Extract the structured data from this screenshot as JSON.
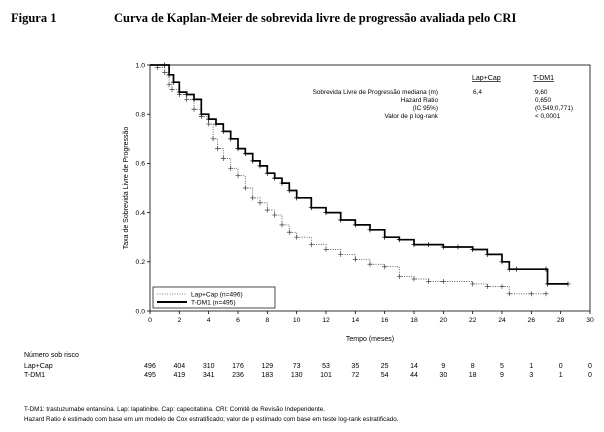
{
  "figure": {
    "label": "Figura 1",
    "title": "Curva de Kaplan-Meier de sobrevida livre de progressão avaliada pelo CRI"
  },
  "chart_data": {
    "type": "line",
    "title": "",
    "xlabel": "Tempo (meses)",
    "ylabel": "Taxa de Sobrevida Livre de Progressão",
    "xlim": [
      0,
      30
    ],
    "ylim": [
      0.0,
      1.0
    ],
    "xticks": [
      "0",
      "2",
      "4",
      "6",
      "8",
      "10",
      "12",
      "14",
      "16",
      "18",
      "20",
      "22",
      "24",
      "26",
      "28",
      "30"
    ],
    "xtick_values": [
      0,
      2,
      4,
      6,
      8,
      10,
      12,
      14,
      16,
      18,
      20,
      22,
      24,
      26,
      28,
      30
    ],
    "yticks": [
      "0.0",
      "0.2",
      "0.4",
      "0.6",
      "0.8",
      "1.0"
    ],
    "ytick_values": [
      0.0,
      0.2,
      0.4,
      0.6,
      0.8,
      1.0
    ],
    "legend_position": "bottom-left",
    "series": [
      {
        "name": "Lap+Cap (n=496)",
        "style": "dotted",
        "points": [
          [
            0,
            1.0
          ],
          [
            0.5,
            0.99
          ],
          [
            1.0,
            0.97
          ],
          [
            1.3,
            0.92
          ],
          [
            1.5,
            0.9
          ],
          [
            2.0,
            0.88
          ],
          [
            2.5,
            0.86
          ],
          [
            3.0,
            0.82
          ],
          [
            3.5,
            0.79
          ],
          [
            4.0,
            0.76
          ],
          [
            4.3,
            0.7
          ],
          [
            4.6,
            0.66
          ],
          [
            5.0,
            0.62
          ],
          [
            5.5,
            0.58
          ],
          [
            6.0,
            0.55
          ],
          [
            6.5,
            0.5
          ],
          [
            7.0,
            0.46
          ],
          [
            7.5,
            0.44
          ],
          [
            8.0,
            0.41
          ],
          [
            8.5,
            0.39
          ],
          [
            9.0,
            0.35
          ],
          [
            9.5,
            0.32
          ],
          [
            10.0,
            0.3
          ],
          [
            11.0,
            0.27
          ],
          [
            12.0,
            0.25
          ],
          [
            13.0,
            0.23
          ],
          [
            14.0,
            0.21
          ],
          [
            15.0,
            0.19
          ],
          [
            16.0,
            0.18
          ],
          [
            17.0,
            0.14
          ],
          [
            18.0,
            0.13
          ],
          [
            19.0,
            0.12
          ],
          [
            20.0,
            0.12
          ],
          [
            22.0,
            0.11
          ],
          [
            23.0,
            0.1
          ],
          [
            24.0,
            0.1
          ],
          [
            24.5,
            0.07
          ],
          [
            26.0,
            0.07
          ],
          [
            27.0,
            0.07
          ]
        ]
      },
      {
        "name": "T-DM1 (n=495)",
        "style": "solid",
        "points": [
          [
            0,
            1.0
          ],
          [
            1.0,
            1.0
          ],
          [
            1.3,
            0.96
          ],
          [
            1.6,
            0.93
          ],
          [
            2.0,
            0.89
          ],
          [
            2.5,
            0.88
          ],
          [
            3.0,
            0.86
          ],
          [
            3.5,
            0.8
          ],
          [
            4.0,
            0.78
          ],
          [
            4.5,
            0.76
          ],
          [
            5.0,
            0.73
          ],
          [
            5.5,
            0.7
          ],
          [
            6.0,
            0.66
          ],
          [
            6.5,
            0.64
          ],
          [
            7.0,
            0.61
          ],
          [
            7.5,
            0.59
          ],
          [
            8.0,
            0.56
          ],
          [
            8.5,
            0.54
          ],
          [
            9.0,
            0.52
          ],
          [
            9.5,
            0.49
          ],
          [
            10.0,
            0.46
          ],
          [
            11.0,
            0.42
          ],
          [
            12.0,
            0.4
          ],
          [
            13.0,
            0.37
          ],
          [
            14.0,
            0.35
          ],
          [
            15.0,
            0.33
          ],
          [
            16.0,
            0.3
          ],
          [
            17.0,
            0.29
          ],
          [
            18.0,
            0.27
          ],
          [
            19.0,
            0.27
          ],
          [
            20.0,
            0.26
          ],
          [
            21.0,
            0.26
          ],
          [
            22.0,
            0.25
          ],
          [
            23.0,
            0.23
          ],
          [
            24.0,
            0.2
          ],
          [
            24.5,
            0.17
          ],
          [
            25.0,
            0.17
          ],
          [
            27.0,
            0.17
          ],
          [
            27.1,
            0.11
          ],
          [
            28.5,
            0.11
          ]
        ]
      }
    ]
  },
  "stats": {
    "col_header_1": "Lap+Cap",
    "col_header_2": "T-DM1",
    "rows": [
      {
        "label": "Sobrevida Livre de Progressão mediana (m)",
        "v1": "6,4",
        "v2": "9,60"
      },
      {
        "label": "Hazard Ratio",
        "v1": "",
        "v2": "0,650"
      },
      {
        "label": "(IC 95%)",
        "v1": "",
        "v2": "(0,549;0,771)"
      },
      {
        "label": "Valor de p log-rank",
        "v1": "",
        "v2": "< 0,0001"
      }
    ]
  },
  "risk_table": {
    "title": "Número sob risco",
    "rows": [
      {
        "label": "Lap+Cap",
        "values": [
          "496",
          "404",
          "310",
          "176",
          "129",
          "73",
          "53",
          "35",
          "25",
          "14",
          "9",
          "8",
          "5",
          "1",
          "0",
          "0"
        ]
      },
      {
        "label": "T-DM1",
        "values": [
          "495",
          "419",
          "341",
          "236",
          "183",
          "130",
          "101",
          "72",
          "54",
          "44",
          "30",
          "18",
          "9",
          "3",
          "1",
          "0"
        ]
      }
    ]
  },
  "footnotes": [
    "T-DM1: trastuzumabe entansina. Lap: lapatinibe. Cap: capecitabina. CRI: Comitê de Revisão Independente.",
    "Hazard Ratio é estimado com base em um modelo de Cox estratificado; valor de p estimado com base em teste log-rank estratificado."
  ]
}
